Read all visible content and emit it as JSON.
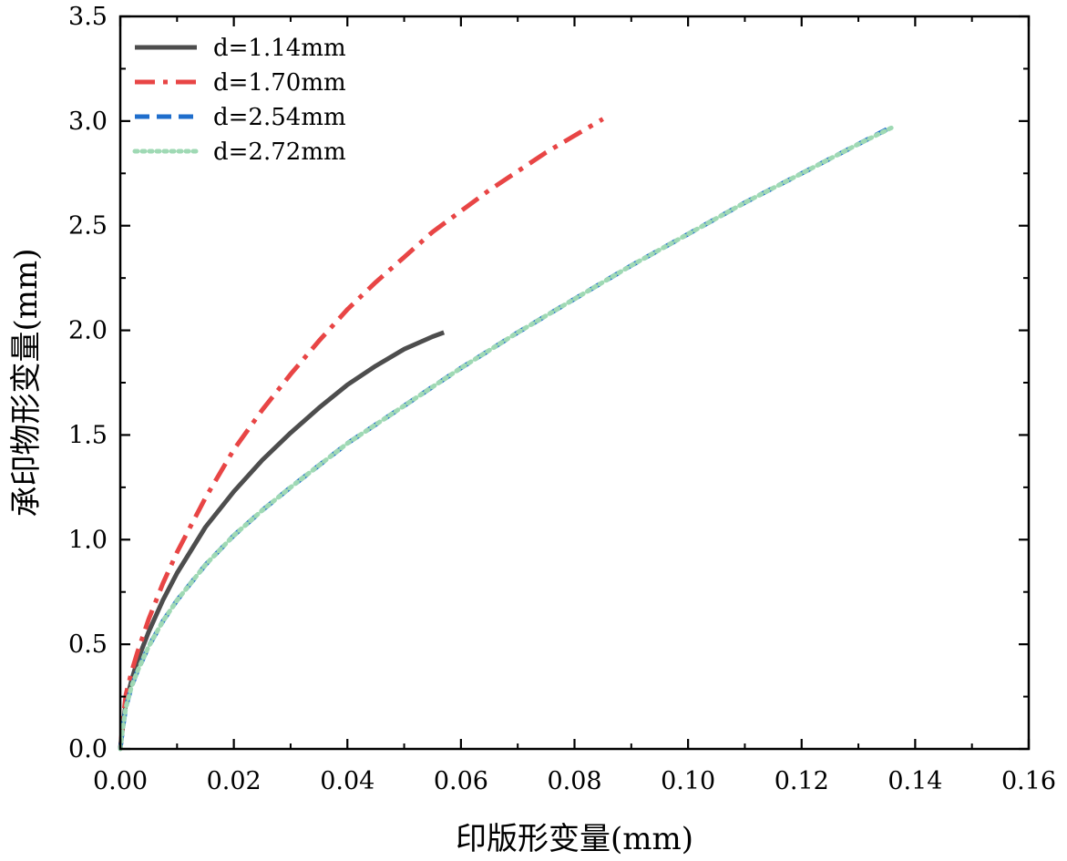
{
  "chart_data": {
    "type": "line",
    "title": "",
    "xlabel": "印版形变量(mm)",
    "ylabel": "承印物形变量(mm)",
    "xlim": [
      0,
      0.16
    ],
    "ylim": [
      0,
      3.5
    ],
    "xticks": [
      0,
      0.02,
      0.04,
      0.06,
      0.08,
      0.1,
      0.12,
      0.14,
      0.16
    ],
    "xtick_labels": [
      "0.00",
      "0.02",
      "0.04",
      "0.06",
      "0.08",
      "0.10",
      "0.12",
      "0.14",
      "0.16"
    ],
    "yticks": [
      0,
      0.5,
      1.0,
      1.5,
      2.0,
      2.5,
      3.0,
      3.5
    ],
    "ytick_labels": [
      "0.0",
      "0.5",
      "1.0",
      "1.5",
      "2.0",
      "2.5",
      "3.0",
      "3.5"
    ],
    "grid": false,
    "legend_position": "top-left",
    "series": [
      {
        "name": "d=1.14mm",
        "color": "#4d4d4d",
        "style": "solid",
        "x": [
          0,
          0.0005,
          0.001,
          0.002,
          0.003,
          0.005,
          0.0075,
          0.01,
          0.015,
          0.02,
          0.025,
          0.03,
          0.035,
          0.04,
          0.045,
          0.05,
          0.055,
          0.057
        ],
        "y": [
          0,
          0.12,
          0.22,
          0.33,
          0.42,
          0.56,
          0.71,
          0.84,
          1.06,
          1.23,
          1.38,
          1.51,
          1.63,
          1.74,
          1.83,
          1.91,
          1.97,
          1.99
        ]
      },
      {
        "name": "d=1.70mm",
        "color": "#e84545",
        "style": "dashdot",
        "x": [
          0,
          0.0005,
          0.001,
          0.002,
          0.003,
          0.005,
          0.0075,
          0.01,
          0.015,
          0.02,
          0.025,
          0.03,
          0.035,
          0.04,
          0.045,
          0.05,
          0.055,
          0.06,
          0.065,
          0.07,
          0.075,
          0.08,
          0.085
        ],
        "y": [
          0,
          0.14,
          0.26,
          0.37,
          0.46,
          0.62,
          0.79,
          0.94,
          1.2,
          1.43,
          1.62,
          1.79,
          1.95,
          2.1,
          2.23,
          2.35,
          2.47,
          2.57,
          2.67,
          2.76,
          2.85,
          2.93,
          3.01
        ]
      },
      {
        "name": "d=2.54mm",
        "color": "#1f6ecc",
        "style": "dashed",
        "x": [
          0,
          0.0005,
          0.001,
          0.002,
          0.003,
          0.005,
          0.0075,
          0.01,
          0.015,
          0.02,
          0.025,
          0.03,
          0.04,
          0.05,
          0.06,
          0.07,
          0.08,
          0.09,
          0.1,
          0.11,
          0.12,
          0.13,
          0.135
        ],
        "y": [
          0,
          0.11,
          0.2,
          0.3,
          0.37,
          0.49,
          0.61,
          0.71,
          0.88,
          1.02,
          1.14,
          1.25,
          1.46,
          1.64,
          1.82,
          1.99,
          2.15,
          2.31,
          2.46,
          2.61,
          2.75,
          2.89,
          2.96
        ]
      },
      {
        "name": "d=2.72mm",
        "color": "#9fd9b4",
        "style": "dotted",
        "x": [
          0,
          0.0005,
          0.001,
          0.002,
          0.003,
          0.005,
          0.0075,
          0.01,
          0.015,
          0.02,
          0.025,
          0.03,
          0.04,
          0.05,
          0.06,
          0.07,
          0.08,
          0.09,
          0.1,
          0.11,
          0.12,
          0.13,
          0.136
        ],
        "y": [
          0,
          0.11,
          0.2,
          0.3,
          0.37,
          0.49,
          0.61,
          0.71,
          0.88,
          1.02,
          1.14,
          1.25,
          1.46,
          1.64,
          1.82,
          1.99,
          2.15,
          2.31,
          2.46,
          2.61,
          2.75,
          2.89,
          2.97
        ]
      }
    ]
  }
}
